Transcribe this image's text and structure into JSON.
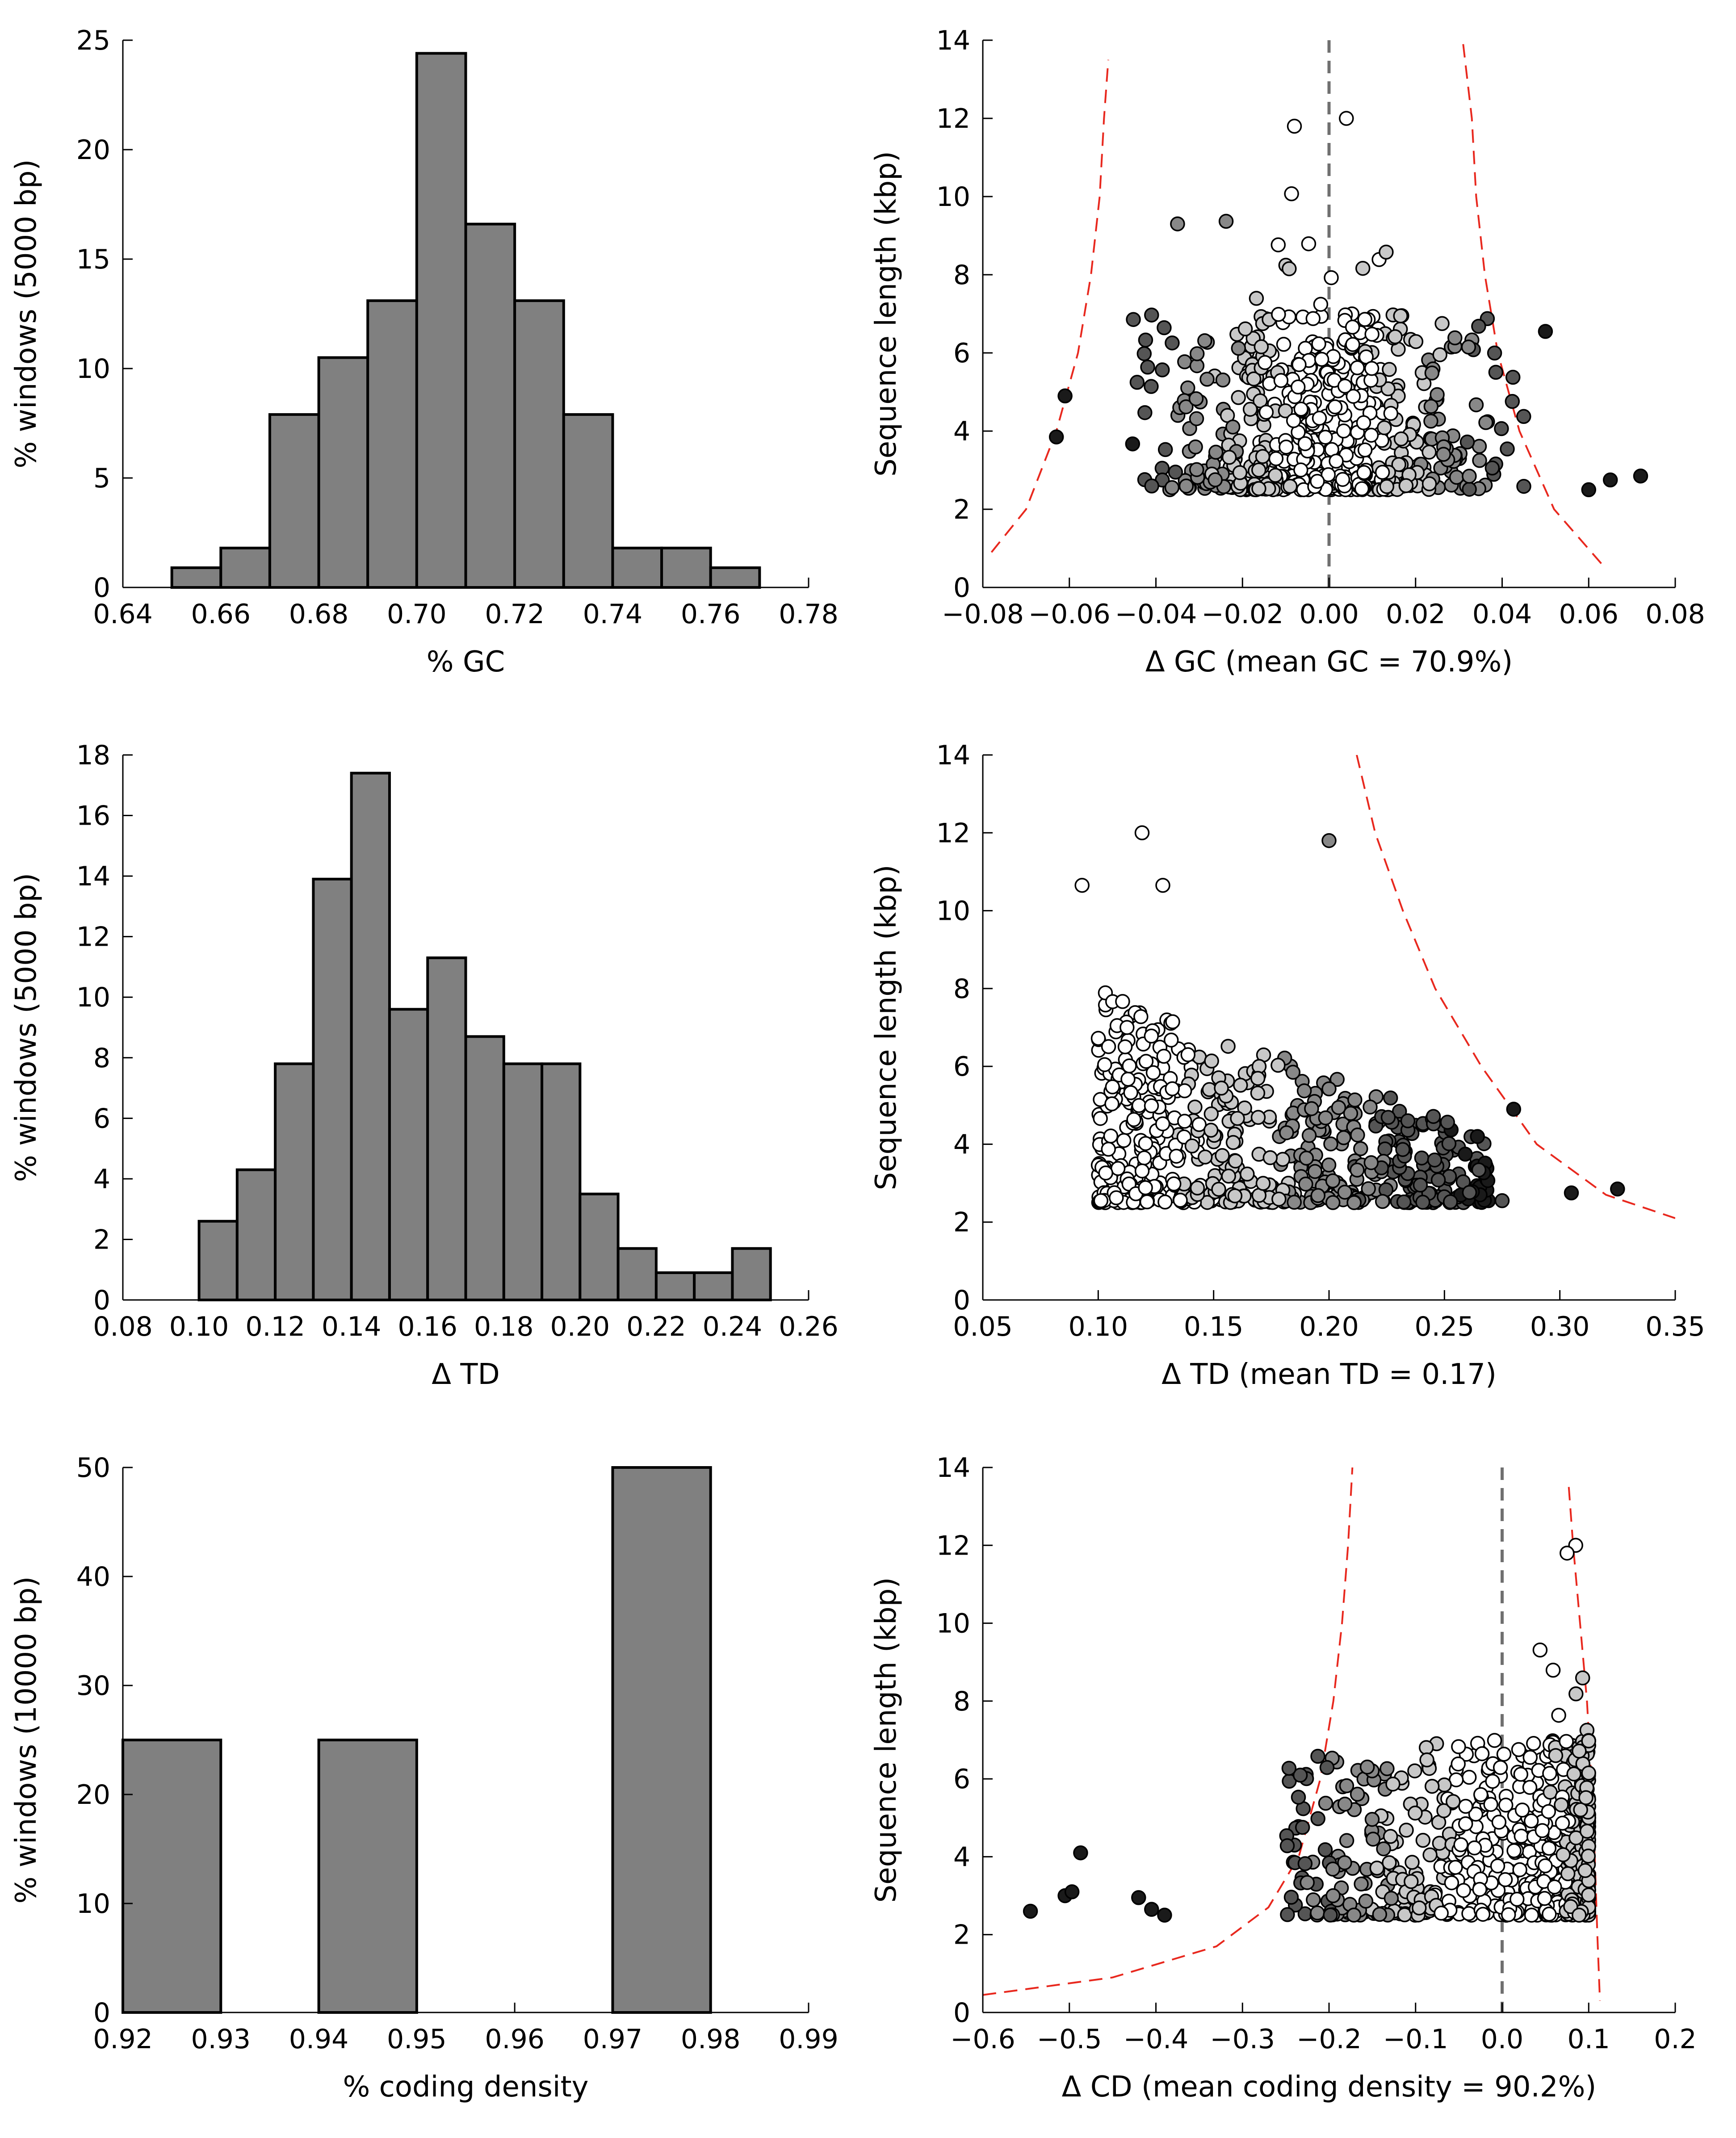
{
  "chart_data": [
    {
      "type": "bar",
      "xlabel": "% GC",
      "ylabel": "% windows (5000 bp)",
      "xlim": [
        0.64,
        0.78
      ],
      "ylim": [
        0,
        25
      ],
      "xticks": [
        "0.64",
        "0.66",
        "0.68",
        "0.70",
        "0.72",
        "0.74",
        "0.76",
        "0.78"
      ],
      "yticks": [
        "0",
        "5",
        "10",
        "15",
        "20",
        "25"
      ],
      "bin_width": 0.01,
      "bin_starts": [
        0.65,
        0.66,
        0.67,
        0.68,
        0.69,
        0.7,
        0.71,
        0.72,
        0.73,
        0.74,
        0.75,
        0.76
      ],
      "values": [
        0.9,
        1.8,
        7.9,
        10.5,
        13.1,
        24.4,
        16.6,
        13.1,
        7.9,
        1.8,
        1.8,
        0.9
      ],
      "bar_color": "#808080"
    },
    {
      "type": "scatter",
      "xlabel": "Δ GC (mean GC = 70.9%)",
      "ylabel": "Sequence length (kbp)",
      "xlim": [
        -0.08,
        0.08
      ],
      "ylim": [
        0,
        14
      ],
      "xticks": [
        "−0.08",
        "−0.06",
        "−0.04",
        "−0.02",
        "0.00",
        "0.02",
        "0.04",
        "0.06",
        "0.08"
      ],
      "yticks": [
        "0",
        "2",
        "4",
        "6",
        "8",
        "10",
        "12",
        "14"
      ],
      "mean_line_x": 0,
      "boundary_left": [
        [
          -0.078,
          0.9
        ],
        [
          -0.07,
          2.0
        ],
        [
          -0.063,
          4.0
        ],
        [
          -0.058,
          6.0
        ],
        [
          -0.055,
          8.0
        ],
        [
          -0.053,
          10.0
        ],
        [
          -0.052,
          12.0
        ],
        [
          -0.051,
          13.5
        ]
      ],
      "boundary_right": [
        [
          0.031,
          13.9
        ],
        [
          0.033,
          12.0
        ],
        [
          0.034,
          10.0
        ],
        [
          0.036,
          8.0
        ],
        [
          0.039,
          6.0
        ],
        [
          0.044,
          4.0
        ],
        [
          0.052,
          2.0
        ],
        [
          0.063,
          0.6
        ]
      ],
      "point_colors": [
        "#ffffff",
        "#c8c8c8",
        "#888888",
        "#555555",
        "#1a1a1a"
      ],
      "highlighted_points": [
        [
          -0.061,
          4.9
        ],
        [
          -0.063,
          3.85
        ],
        [
          -0.008,
          11.8
        ],
        [
          0.004,
          12.0
        ],
        [
          -0.035,
          9.3
        ],
        [
          0.05,
          6.55
        ],
        [
          0.065,
          2.75
        ],
        [
          0.072,
          2.85
        ],
        [
          0.06,
          2.5
        ]
      ]
    },
    {
      "type": "bar",
      "xlabel": "Δ TD",
      "ylabel": "% windows (5000 bp)",
      "xlim": [
        0.08,
        0.26
      ],
      "ylim": [
        0,
        18
      ],
      "xticks": [
        "0.08",
        "0.10",
        "0.12",
        "0.14",
        "0.16",
        "0.18",
        "0.20",
        "0.22",
        "0.24",
        "0.26"
      ],
      "yticks": [
        "0",
        "2",
        "4",
        "6",
        "8",
        "10",
        "12",
        "14",
        "16",
        "18"
      ],
      "bin_width": 0.01,
      "bin_starts": [
        0.1,
        0.11,
        0.12,
        0.13,
        0.14,
        0.15,
        0.16,
        0.17,
        0.18,
        0.19,
        0.2,
        0.21,
        0.22,
        0.23,
        0.24
      ],
      "values": [
        2.6,
        4.3,
        7.8,
        13.9,
        17.4,
        9.6,
        11.3,
        8.7,
        7.8,
        7.8,
        3.5,
        1.7,
        0.9,
        0.9,
        1.7
      ],
      "bar_color": "#808080"
    },
    {
      "type": "scatter",
      "xlabel": "Δ TD (mean TD = 0.17)",
      "ylabel": "Sequence length (kbp)",
      "xlim": [
        0.05,
        0.35
      ],
      "ylim": [
        0,
        14
      ],
      "xticks": [
        "0.05",
        "0.10",
        "0.15",
        "0.20",
        "0.25",
        "0.30",
        "0.35"
      ],
      "yticks": [
        "0",
        "2",
        "4",
        "6",
        "8",
        "10",
        "12",
        "14"
      ],
      "boundary_right": [
        [
          0.212,
          14.0
        ],
        [
          0.22,
          12.0
        ],
        [
          0.232,
          10.0
        ],
        [
          0.246,
          8.0
        ],
        [
          0.266,
          6.0
        ],
        [
          0.29,
          4.0
        ],
        [
          0.32,
          2.7
        ],
        [
          0.35,
          2.1
        ]
      ],
      "point_colors": [
        "#ffffff",
        "#c8c8c8",
        "#888888",
        "#555555",
        "#1a1a1a"
      ],
      "highlighted_points": [
        [
          0.119,
          12.0
        ],
        [
          0.2,
          11.8
        ],
        [
          0.093,
          10.65
        ],
        [
          0.128,
          10.65
        ],
        [
          0.28,
          4.9
        ],
        [
          0.325,
          2.85
        ],
        [
          0.305,
          2.75
        ],
        [
          0.275,
          2.55
        ]
      ]
    },
    {
      "type": "bar",
      "xlabel": "% coding density",
      "ylabel": "% windows (10000 bp)",
      "xlim": [
        0.92,
        0.99
      ],
      "ylim": [
        0,
        50
      ],
      "xticks": [
        "0.92",
        "0.93",
        "0.94",
        "0.95",
        "0.96",
        "0.97",
        "0.98",
        "0.99"
      ],
      "yticks": [
        "0",
        "10",
        "20",
        "30",
        "40",
        "50"
      ],
      "bin_width": 0.01,
      "bin_starts": [
        0.92,
        0.94,
        0.97
      ],
      "values": [
        25,
        25,
        50
      ],
      "bar_color": "#808080"
    },
    {
      "type": "scatter",
      "xlabel": "Δ CD (mean coding density = 90.2%)",
      "ylabel": "Sequence length (kbp)",
      "xlim": [
        -0.6,
        0.2
      ],
      "ylim": [
        0,
        14
      ],
      "xticks": [
        "−0.6",
        "−0.5",
        "−0.4",
        "−0.3",
        "−0.2",
        "−0.1",
        "0.0",
        "0.1",
        "0.2"
      ],
      "yticks": [
        "0",
        "2",
        "4",
        "6",
        "8",
        "10",
        "12",
        "14"
      ],
      "mean_line_x": 0,
      "boundary_left": [
        [
          -0.6,
          0.45
        ],
        [
          -0.45,
          0.9
        ],
        [
          -0.33,
          1.7
        ],
        [
          -0.27,
          2.7
        ],
        [
          -0.235,
          4.0
        ],
        [
          -0.21,
          6.0
        ],
        [
          -0.195,
          8.0
        ],
        [
          -0.185,
          10.0
        ],
        [
          -0.178,
          12.0
        ],
        [
          -0.173,
          14.0
        ]
      ],
      "boundary_right": [
        [
          0.077,
          13.5
        ],
        [
          0.082,
          12.0
        ],
        [
          0.09,
          10.0
        ],
        [
          0.098,
          8.0
        ],
        [
          0.103,
          6.0
        ],
        [
          0.107,
          4.0
        ],
        [
          0.11,
          2.0
        ],
        [
          0.113,
          0.3
        ]
      ],
      "point_colors": [
        "#ffffff",
        "#c8c8c8",
        "#888888",
        "#555555",
        "#1a1a1a"
      ],
      "highlighted_points": [
        [
          -0.545,
          2.6
        ],
        [
          -0.505,
          3.0
        ],
        [
          -0.497,
          3.1
        ],
        [
          -0.487,
          4.1
        ],
        [
          -0.42,
          2.95
        ],
        [
          -0.405,
          2.65
        ],
        [
          -0.39,
          2.5
        ],
        [
          0.085,
          12.0
        ],
        [
          0.075,
          11.8
        ]
      ]
    }
  ]
}
